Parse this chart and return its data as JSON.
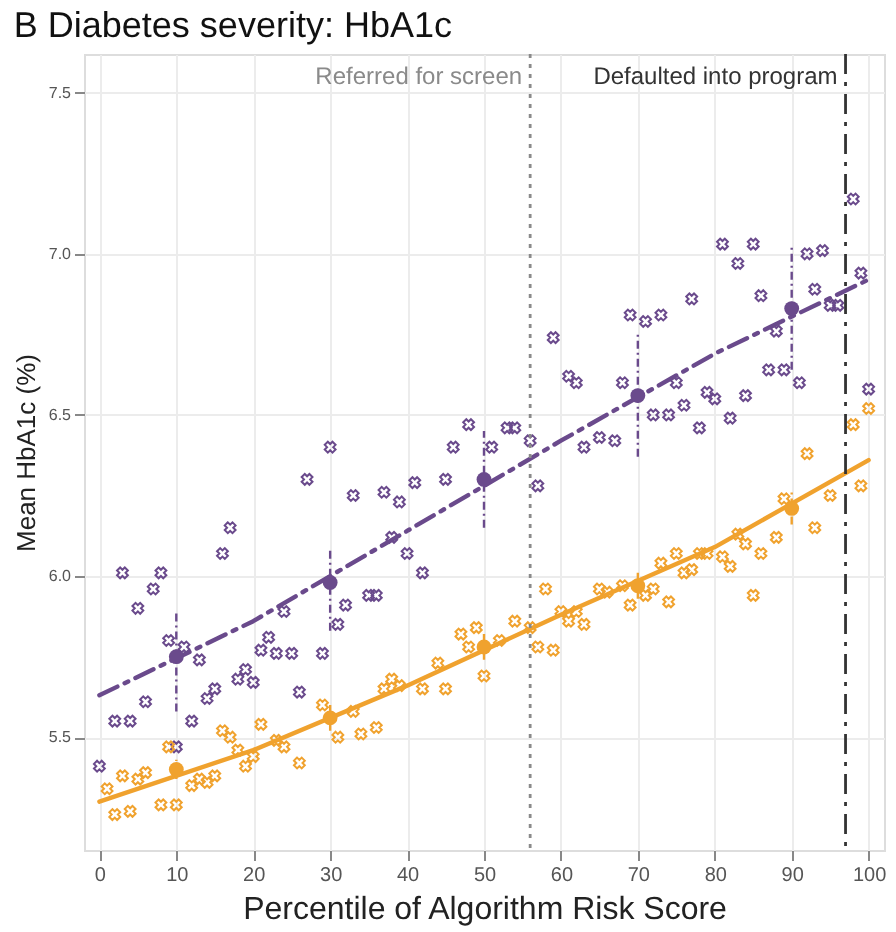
{
  "chart_data": {
    "type": "scatter",
    "title": "B Diabetes severity: HbA1c",
    "xlabel": "Percentile of Algorithm Risk Score",
    "ylabel": "Mean HbA1c (%)",
    "xlim": [
      -2,
      102
    ],
    "ylim": [
      5.15,
      7.62
    ],
    "xticks": [
      0,
      10,
      20,
      30,
      40,
      50,
      60,
      70,
      80,
      90,
      100
    ],
    "yticks": [
      5.5,
      {
        "value": 6,
        "label": "6.0"
      },
      6.5,
      {
        "value": 7,
        "label": "7.0"
      },
      7.5
    ],
    "grid": true,
    "legend": false,
    "series": [
      {
        "type": "scatter",
        "marker": "cross",
        "color": "#6a4a8c",
        "x": [
          0,
          2,
          3,
          4,
          5,
          6,
          7,
          8,
          9,
          10,
          11,
          12,
          13,
          14,
          15,
          16,
          17,
          18,
          19,
          20,
          21,
          22,
          23,
          24,
          25,
          26,
          27,
          29,
          30,
          31,
          32,
          33,
          35,
          36,
          37,
          38,
          39,
          40,
          41,
          42,
          45,
          46,
          48,
          51,
          53,
          54,
          56,
          57,
          59,
          61,
          62,
          63,
          65,
          67,
          68,
          69,
          71,
          72,
          73,
          74,
          75,
          76,
          77,
          78,
          79,
          80,
          81,
          82,
          83,
          84,
          85,
          86,
          87,
          88,
          89,
          91,
          92,
          93,
          94,
          95,
          96,
          98,
          99,
          100
        ],
        "values": [
          5.41,
          5.55,
          6.01,
          5.55,
          5.9,
          5.61,
          5.96,
          6.01,
          5.8,
          5.47,
          5.78,
          5.55,
          5.74,
          5.62,
          5.65,
          6.07,
          6.15,
          5.68,
          5.71,
          5.67,
          5.77,
          5.81,
          5.76,
          5.89,
          5.76,
          5.64,
          6.3,
          5.76,
          6.4,
          5.85,
          5.91,
          6.25,
          5.94,
          5.94,
          6.26,
          6.12,
          6.23,
          6.07,
          6.29,
          6.01,
          6.3,
          6.4,
          6.47,
          6.4,
          6.46,
          6.46,
          6.42,
          6.28,
          6.74,
          6.62,
          6.6,
          6.4,
          6.43,
          6.42,
          6.6,
          6.81,
          6.79,
          6.5,
          6.81,
          6.5,
          6.6,
          6.53,
          6.86,
          6.46,
          6.57,
          6.55,
          7.03,
          6.49,
          6.97,
          6.56,
          7.03,
          6.87,
          6.64,
          6.76,
          6.64,
          6.6,
          7.0,
          6.89,
          7.01,
          6.84,
          6.84,
          7.17,
          6.94,
          6.58
        ]
      },
      {
        "type": "scatter",
        "marker": "cross",
        "color": "#f0a22e",
        "x": [
          1,
          2,
          3,
          4,
          5,
          6,
          8,
          9,
          10,
          12,
          13,
          14,
          15,
          16,
          17,
          18,
          19,
          20,
          21,
          23,
          24,
          26,
          29,
          31,
          33,
          34,
          36,
          37,
          38,
          39,
          42,
          44,
          45,
          47,
          48,
          49,
          50,
          52,
          54,
          56,
          57,
          58,
          59,
          60,
          61,
          62,
          63,
          65,
          66,
          68,
          69,
          71,
          72,
          73,
          74,
          75,
          76,
          77,
          78,
          79,
          81,
          82,
          83,
          84,
          85,
          86,
          88,
          89,
          92,
          93,
          95,
          98,
          99,
          100
        ],
        "values": [
          5.34,
          5.26,
          5.38,
          5.27,
          5.37,
          5.39,
          5.29,
          5.47,
          5.29,
          5.35,
          5.37,
          5.36,
          5.38,
          5.52,
          5.5,
          5.46,
          5.41,
          5.44,
          5.54,
          5.49,
          5.47,
          5.42,
          5.6,
          5.5,
          5.58,
          5.51,
          5.53,
          5.65,
          5.68,
          5.66,
          5.65,
          5.73,
          5.65,
          5.82,
          5.78,
          5.84,
          5.69,
          5.8,
          5.86,
          5.84,
          5.78,
          5.96,
          5.77,
          5.89,
          5.86,
          5.89,
          5.85,
          5.96,
          5.95,
          5.97,
          5.91,
          5.94,
          5.96,
          6.04,
          5.92,
          6.07,
          6.01,
          6.02,
          6.07,
          6.07,
          6.06,
          6.03,
          6.13,
          6.1,
          5.94,
          6.07,
          6.12,
          6.24,
          6.38,
          6.15,
          6.25,
          6.47,
          6.28,
          6.52
        ]
      },
      {
        "type": "line",
        "line_style": "dashed",
        "marker": "none",
        "color": "#6a4a8c",
        "x": [
          0,
          20,
          40,
          60,
          80,
          100
        ],
        "values": [
          5.63,
          5.86,
          6.14,
          6.42,
          6.69,
          6.92
        ]
      },
      {
        "type": "line",
        "line_style": "solid",
        "marker": "none",
        "color": "#f0a22e",
        "x": [
          0,
          20,
          40,
          60,
          80,
          100
        ],
        "values": [
          5.3,
          5.46,
          5.66,
          5.88,
          6.09,
          6.36
        ]
      },
      {
        "type": "scatter",
        "marker": "circle",
        "color": "#6a4a8c",
        "x": [
          10,
          30,
          50,
          70,
          90
        ],
        "values": [
          5.75,
          5.98,
          6.3,
          6.56,
          6.83
        ],
        "errors": [
          [
            5.58,
            5.89
          ],
          [
            5.83,
            6.08
          ],
          [
            6.15,
            6.45
          ],
          [
            6.37,
            6.75
          ],
          [
            6.64,
            7.03
          ]
        ]
      },
      {
        "type": "scatter",
        "marker": "circle",
        "color": "#f0a22e",
        "x": [
          10,
          30,
          50,
          70,
          90
        ],
        "values": [
          5.4,
          5.56,
          5.78,
          5.97,
          6.21
        ],
        "errors": [
          [
            5.37,
            5.43
          ],
          [
            5.52,
            5.6
          ],
          [
            5.74,
            5.82
          ],
          [
            5.93,
            6.01
          ],
          [
            6.16,
            6.26
          ]
        ]
      }
    ],
    "ref_lines": [
      {
        "axis": "x",
        "value": 56,
        "label": "Referred for screen",
        "color": "#8a8a8a",
        "line_style": "dotted"
      },
      {
        "axis": "x",
        "value": 97,
        "label": "Defaulted into program",
        "color": "#333333",
        "line_style": "dashed"
      }
    ]
  }
}
